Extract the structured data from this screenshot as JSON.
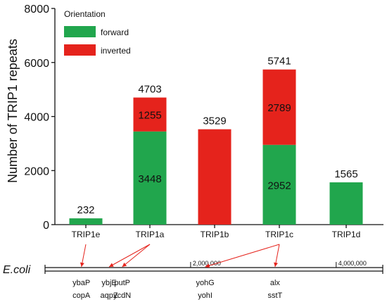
{
  "chart_data": {
    "type": "bar",
    "stacked": true,
    "ylabel": "Number of TRIP1 repeats",
    "ylim": [
      0,
      8000
    ],
    "yticks": [
      "0",
      "2000",
      "4000",
      "6000",
      "8000"
    ],
    "ytick_values": [
      0,
      2000,
      4000,
      6000,
      8000
    ],
    "grid": false,
    "legend": {
      "title": "Orientation",
      "placement": "top-left",
      "entries": [
        "forward",
        "inverted"
      ]
    },
    "categories": [
      "TRIP1e",
      "TRIP1a",
      "TRIP1b",
      "TRIP1c",
      "TRIP1d"
    ],
    "series": [
      {
        "name": "forward",
        "color": "#21a64d",
        "values": [
          232,
          3448,
          0,
          2952,
          1565
        ]
      },
      {
        "name": "inverted",
        "color": "#e5231c",
        "values": [
          0,
          1255,
          3529,
          2789,
          0
        ]
      }
    ],
    "totals": [
      "232",
      "4703",
      "3529",
      "5741",
      "1565"
    ],
    "segment_labels": {
      "forward": [
        "",
        "3448",
        "",
        "2952",
        ""
      ],
      "inverted": [
        "",
        "1255",
        "",
        "2789",
        ""
      ]
    }
  },
  "genome_map": {
    "organism": "E.coli",
    "scale_labels": [
      "2,000,000",
      "4,000,000"
    ],
    "scale_values": [
      2000000,
      4000000
    ],
    "genome_length": 4640000,
    "loci": [
      {
        "bar": "TRIP1e",
        "position": 500000,
        "genes": [
          "ybaP",
          "copA"
        ]
      },
      {
        "bar": "TRIP1a",
        "position": 880000,
        "genes": [
          "ybjE",
          "aqpZ"
        ]
      },
      {
        "bar": "TRIP1a",
        "position": 1060000,
        "genes": [
          "putP",
          "ycdN"
        ]
      },
      {
        "bar": "TRIP1c",
        "position": 2200000,
        "genes": [
          "yohG",
          "yohI"
        ]
      },
      {
        "bar": "TRIP1c",
        "position": 3160000,
        "genes": [
          "alx",
          "sstT"
        ]
      }
    ],
    "arrow_color": "#e5231c"
  }
}
